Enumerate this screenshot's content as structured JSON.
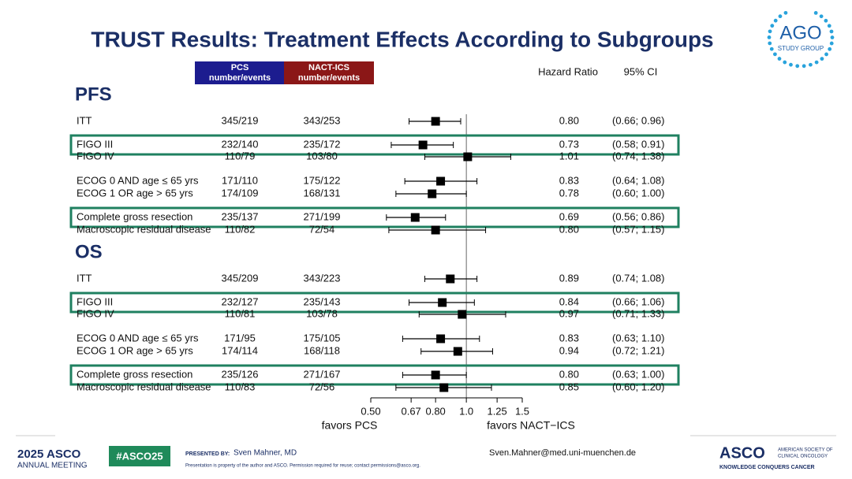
{
  "slide": {
    "title": "TRUST Results: Treatment Effects According to Subgroups",
    "logo": [
      "AGO",
      "STUDY GROUP"
    ],
    "footer": {
      "meeting": [
        "2025 ASCO",
        "ANNUAL MEETING"
      ],
      "hashtag": "#ASCO25",
      "presented_by": "PRESENTED BY:",
      "presenter": "Sven Mahner, MD",
      "disclaimer": "Presentation is property of the author and ASCO. Permission required for reuse; contact permissions@asco.org.",
      "email": "Sven.Mahner@med.uni-muenchen.de",
      "asco": "ASCO",
      "society": [
        "AMERICAN SOCIETY OF",
        "CLINICAL ONCOLOGY"
      ],
      "tagline": "KNOWLEDGE CONQUERS CANCER"
    }
  },
  "chart_data": {
    "type": "forest",
    "columns": {
      "pcs": [
        "PCS",
        "number/events"
      ],
      "nact": [
        "NACT-ICS",
        "number/events"
      ],
      "hr": "Hazard Ratio",
      "ci": "95% CI"
    },
    "pcs_color": "#1c1c8f",
    "nact_color": "#8b1717",
    "highlight_color": "#1f8060",
    "xlim": [
      0.5,
      1.5
    ],
    "log": true,
    "reference": 1,
    "xticks": [
      {
        "value": 0.5,
        "label": "0.50"
      },
      0.67,
      {
        "value": 0.8,
        "label": "0.80"
      },
      {
        "value": 1,
        "label": "1.0"
      },
      1.25,
      1.5
    ],
    "xlabel_left": "favors PCS",
    "xlabel_right": "favors NACT−ICS",
    "groups": [
      {
        "name": "PFS",
        "categories": [
          "ITT",
          "FIGO III",
          "FIGO IV",
          "ECOG 0 AND age ≤ 65 yrs",
          "ECOG 1 OR age > 65 yrs",
          "Complete gross resection",
          "Macroscopic residual disease"
        ],
        "pcs": [
          "345/219",
          "232/140",
          "110/79",
          "171/110",
          "174/109",
          "235/137",
          "110/82"
        ],
        "nact": [
          "343/253",
          "235/172",
          "103/80",
          "175/122",
          "168/131",
          "271/199",
          "72/54"
        ],
        "values": [
          0.8,
          0.73,
          1.01,
          0.83,
          0.78,
          0.69,
          0.8
        ],
        "value_labels": [
          "0.80",
          "0.73",
          "1.01",
          "0.83",
          "0.78",
          "0.69",
          "0.80"
        ],
        "ci_low": [
          0.66,
          0.58,
          0.74,
          0.64,
          0.6,
          0.56,
          0.57
        ],
        "ci_high": [
          0.96,
          0.91,
          1.38,
          1.08,
          1,
          0.86,
          1.15
        ],
        "ci_labels": [
          "(0.66; 0.96)",
          "(0.58; 0.91)",
          "(0.74; 1.38)",
          "(0.64; 1.08)",
          "(0.60; 1.00)",
          "(0.56; 0.86)",
          "(0.57; 1.15)"
        ],
        "highlight": [
          false,
          true,
          false,
          false,
          false,
          true,
          false
        ]
      },
      {
        "name": "OS",
        "categories": [
          "ITT",
          "FIGO III",
          "FIGO IV",
          "ECOG 0 AND age ≤ 65 yrs",
          "ECOG 1 OR age > 65 yrs",
          "Complete gross resection",
          "Macroscopic residual disease"
        ],
        "pcs": [
          "345/209",
          "232/127",
          "110/81",
          "171/95",
          "174/114",
          "235/126",
          "110/83"
        ],
        "nact": [
          "343/223",
          "235/143",
          "103/78",
          "175/105",
          "168/118",
          "271/167",
          "72/56"
        ],
        "values": [
          0.89,
          0.84,
          0.97,
          0.83,
          0.94,
          0.8,
          0.85
        ],
        "value_labels": [
          "0.89",
          "0.84",
          "0.97",
          "0.83",
          "0.94",
          "0.80",
          "0.85"
        ],
        "ci_low": [
          0.74,
          0.66,
          0.71,
          0.63,
          0.72,
          0.63,
          0.6
        ],
        "ci_high": [
          1.08,
          1.06,
          1.33,
          1.1,
          1.21,
          1,
          1.2
        ],
        "ci_labels": [
          "(0.74; 1.08)",
          "(0.66; 1.06)",
          "(0.71; 1.33)",
          "(0.63; 1.10)",
          "(0.72; 1.21)",
          "(0.63; 1.00)",
          "(0.60; 1.20)"
        ],
        "highlight": [
          false,
          true,
          false,
          false,
          false,
          true,
          false
        ]
      }
    ]
  }
}
